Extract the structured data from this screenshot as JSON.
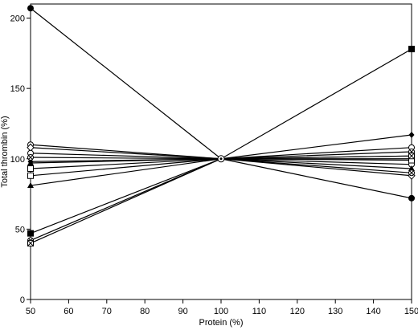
{
  "chart_data": {
    "type": "line",
    "xlabel": "Protein (%)",
    "ylabel": "Total thrombin (%)",
    "xlim": [
      50,
      150
    ],
    "ylim": [
      0,
      210
    ],
    "xticks": [
      50,
      60,
      70,
      80,
      90,
      100,
      110,
      120,
      130,
      140,
      150
    ],
    "yticks": [
      0,
      50,
      100,
      150,
      200
    ],
    "grid": false,
    "legend": "none",
    "x": [
      50,
      100,
      150
    ],
    "series": [
      {
        "marker": "filled-circle",
        "values": [
          207,
          100,
          72
        ]
      },
      {
        "marker": "filled-square",
        "values": [
          47,
          100,
          178
        ]
      },
      {
        "marker": "filled-diamond",
        "values": [
          98,
          100,
          117
        ]
      },
      {
        "marker": "open-circle",
        "values": [
          110,
          100,
          108
        ]
      },
      {
        "marker": "open-diamond",
        "values": [
          108,
          100,
          88
        ]
      },
      {
        "marker": "open-circle",
        "values": [
          104,
          100,
          96
        ]
      },
      {
        "marker": "x-circle",
        "values": [
          101,
          100,
          105
        ]
      },
      {
        "marker": "filled-triangle",
        "values": [
          97,
          100,
          102
        ]
      },
      {
        "marker": "open-square",
        "values": [
          93,
          100,
          100
        ]
      },
      {
        "marker": "open-square",
        "values": [
          88,
          100,
          99
        ]
      },
      {
        "marker": "filled-triangle",
        "values": [
          81,
          100,
          93
        ]
      },
      {
        "marker": "x-circle",
        "values": [
          42,
          100,
          90
        ]
      },
      {
        "marker": "x-square",
        "values": [
          40,
          100,
          102
        ]
      }
    ]
  }
}
